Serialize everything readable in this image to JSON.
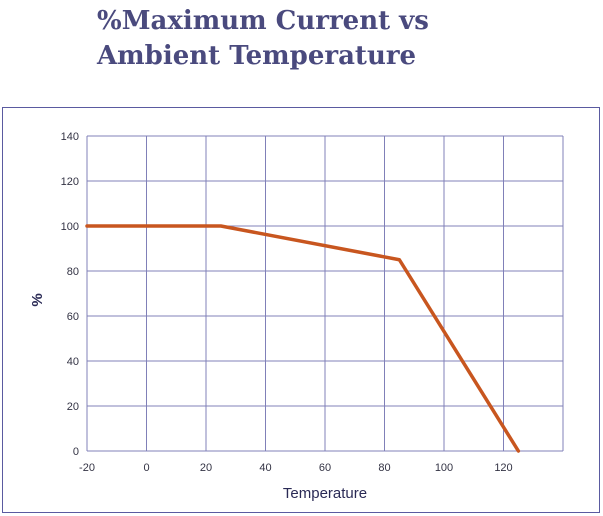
{
  "chart_data": {
    "type": "line",
    "title": [
      "%Maximum Current vs",
      "Ambient Temperature"
    ],
    "xlabel": "Temperature",
    "ylabel": "%",
    "xlim": [
      -20,
      140
    ],
    "ylim": [
      0,
      140
    ],
    "xticks": [
      -20,
      0,
      20,
      40,
      60,
      80,
      100,
      120
    ],
    "yticks": [
      0,
      20,
      40,
      60,
      80,
      100,
      120,
      140
    ],
    "grid": true,
    "series": [
      {
        "x": [
          -20,
          25,
          85,
          125
        ],
        "y": [
          100,
          100,
          85,
          0
        ],
        "color": "#c8561f"
      }
    ]
  }
}
